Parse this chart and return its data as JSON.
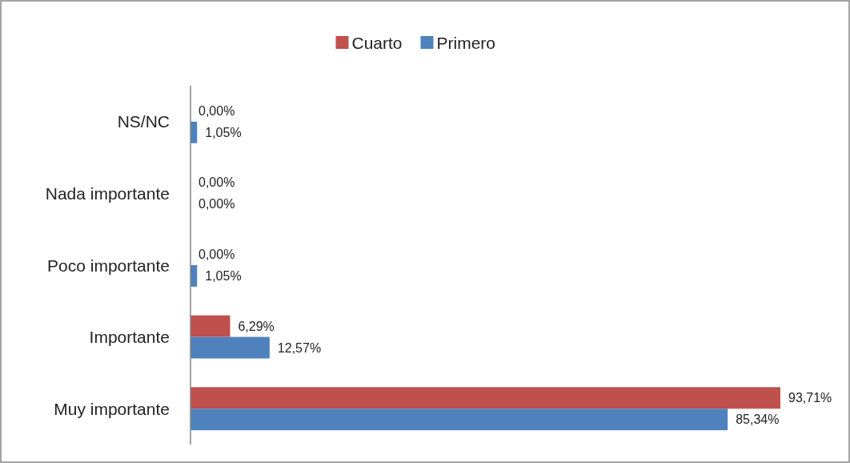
{
  "chart_data": {
    "type": "bar",
    "orientation": "horizontal",
    "categories": [
      "NS/NC",
      "Nada importante",
      "Poco importante",
      "Importante",
      "Muy importante"
    ],
    "series": [
      {
        "name": "Cuarto",
        "color": "#c0504d",
        "values": [
          0,
          0,
          0,
          6.29,
          93.71
        ],
        "value_labels": [
          "0,00%",
          "0,00%",
          "0,00%",
          "6,29%",
          "93,71%"
        ]
      },
      {
        "name": "Primero",
        "color": "#4f81bd",
        "values": [
          1.05,
          0,
          1.05,
          12.57,
          85.34
        ],
        "value_labels": [
          "1,05%",
          "0,00%",
          "1,05%",
          "12,57%",
          "85,34%"
        ]
      }
    ],
    "legend": "top"
  }
}
